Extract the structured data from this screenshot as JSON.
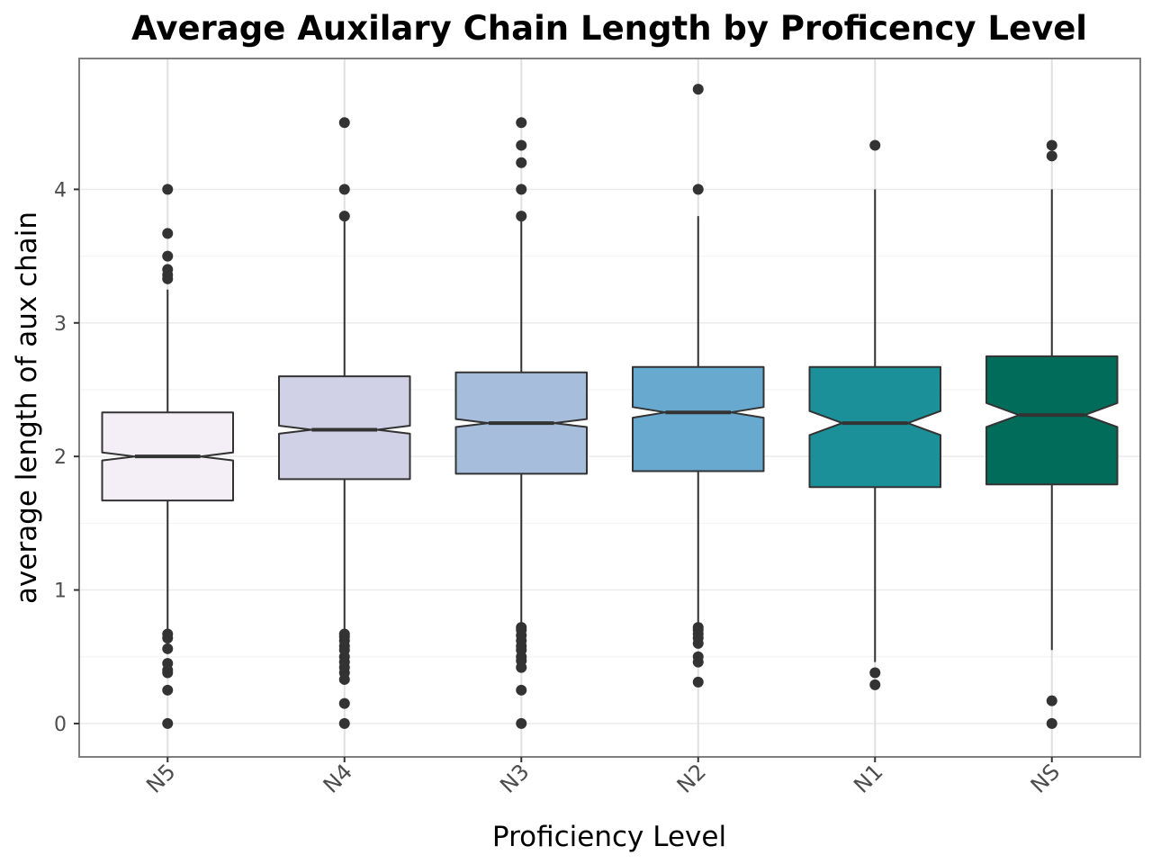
{
  "chart_data": {
    "type": "boxplot",
    "notched": true,
    "title": "Average Auxilary Chain Length by Proficency Level",
    "xlabel": "Proficiency Level",
    "ylabel": "average length of aux chain",
    "ylim": [
      -0.25,
      4.98
    ],
    "yticks": [
      0,
      1,
      2,
      3,
      4
    ],
    "grid": true,
    "legend": "none",
    "categories": [
      "N5",
      "N4",
      "N3",
      "N2",
      "N1",
      "NS"
    ],
    "series": [
      {
        "category": "N5",
        "color": "#f4eef7",
        "whisker_low": 0.7,
        "q1": 1.67,
        "median": 2.0,
        "q3": 2.33,
        "whisker_high": 3.25,
        "notch_low": 1.97,
        "notch_high": 2.03,
        "outliers": [
          0,
          0.25,
          0.38,
          0.4,
          0.45,
          0.56,
          0.64,
          0.67,
          3.33,
          3.36,
          3.4,
          3.5,
          3.67,
          4.0
        ]
      },
      {
        "category": "N4",
        "color": "#d0d1e6",
        "whisker_low": 0.7,
        "q1": 1.83,
        "median": 2.2,
        "q3": 2.6,
        "whisker_high": 3.77,
        "notch_low": 2.17,
        "notch_high": 2.23,
        "outliers": [
          0,
          0.15,
          0.33,
          0.38,
          0.42,
          0.46,
          0.5,
          0.55,
          0.58,
          0.62,
          0.65,
          0.67,
          3.8,
          4.0,
          4.5
        ]
      },
      {
        "category": "N3",
        "color": "#a6bddb",
        "whisker_low": 0.74,
        "q1": 1.87,
        "median": 2.25,
        "q3": 2.63,
        "whisker_high": 3.77,
        "notch_low": 2.22,
        "notch_high": 2.28,
        "outliers": [
          0,
          0.25,
          0.42,
          0.47,
          0.5,
          0.55,
          0.58,
          0.62,
          0.66,
          0.7,
          0.72,
          3.8,
          4.0,
          4.2,
          4.33,
          4.5
        ]
      },
      {
        "category": "N2",
        "color": "#67a9cf",
        "whisker_low": 0.75,
        "q1": 1.89,
        "median": 2.33,
        "q3": 2.67,
        "whisker_high": 3.8,
        "notch_low": 2.29,
        "notch_high": 2.37,
        "outliers": [
          0.31,
          0.46,
          0.5,
          0.6,
          0.64,
          0.67,
          0.7,
          0.72,
          4.0,
          4.75
        ]
      },
      {
        "category": "N1",
        "color": "#1c9099",
        "whisker_low": 0.46,
        "q1": 1.77,
        "median": 2.25,
        "q3": 2.67,
        "whisker_high": 4.0,
        "notch_low": 2.16,
        "notch_high": 2.34,
        "outliers": [
          0.29,
          0.38,
          4.33
        ]
      },
      {
        "category": "NS",
        "color": "#016c59",
        "whisker_low": 0.55,
        "q1": 1.79,
        "median": 2.31,
        "q3": 2.75,
        "whisker_high": 4.0,
        "notch_low": 2.22,
        "notch_high": 2.4,
        "outliers": [
          0,
          0.17,
          4.25,
          4.33
        ]
      }
    ]
  }
}
